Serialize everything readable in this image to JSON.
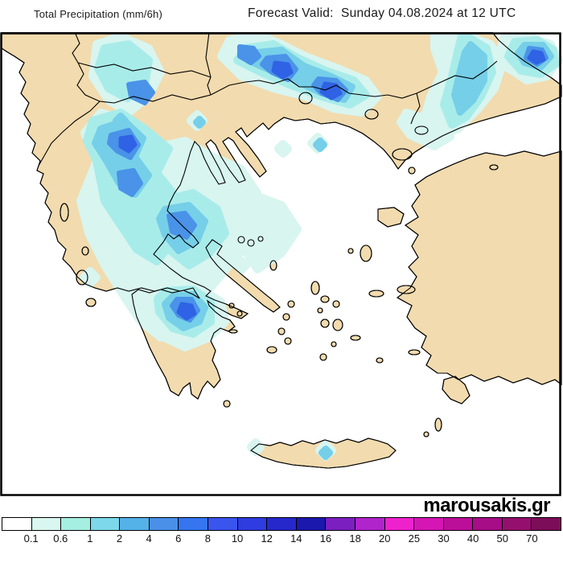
{
  "header": {
    "left_title": "Total Precipitation (mm/6h)",
    "right_title": "Forecast Valid:  Sunday 04.08.2024 at 12 UTC"
  },
  "branding": {
    "site": "marousakis.gr"
  },
  "map": {
    "land_color": "#f2dbae",
    "sea_color": "#ffffff",
    "coast_color": "#000000",
    "frame_color": "#000000",
    "precip_levels": {
      "l1": "#d8f5f0",
      "l2": "#a8ecea",
      "l3": "#76cfe8",
      "l4": "#4a93e8",
      "l5": "#2f62e4"
    }
  },
  "legend": {
    "labels": [
      "0.1",
      "0.6",
      "1",
      "2",
      "4",
      "6",
      "8",
      "10",
      "12",
      "14",
      "16",
      "18",
      "20",
      "25",
      "30",
      "40",
      "50",
      "70"
    ],
    "colors": [
      "#ffffff",
      "#d9f7f0",
      "#a5eee2",
      "#7cd8ea",
      "#55b2e8",
      "#4a90e8",
      "#3575f0",
      "#3a55ee",
      "#2e3ce0",
      "#2628cc",
      "#1b18ae",
      "#7b1fc0",
      "#b024cc",
      "#ee22cc",
      "#d416b4",
      "#bb0f9a",
      "#a60d86",
      "#95106e",
      "#7c0d58"
    ]
  }
}
